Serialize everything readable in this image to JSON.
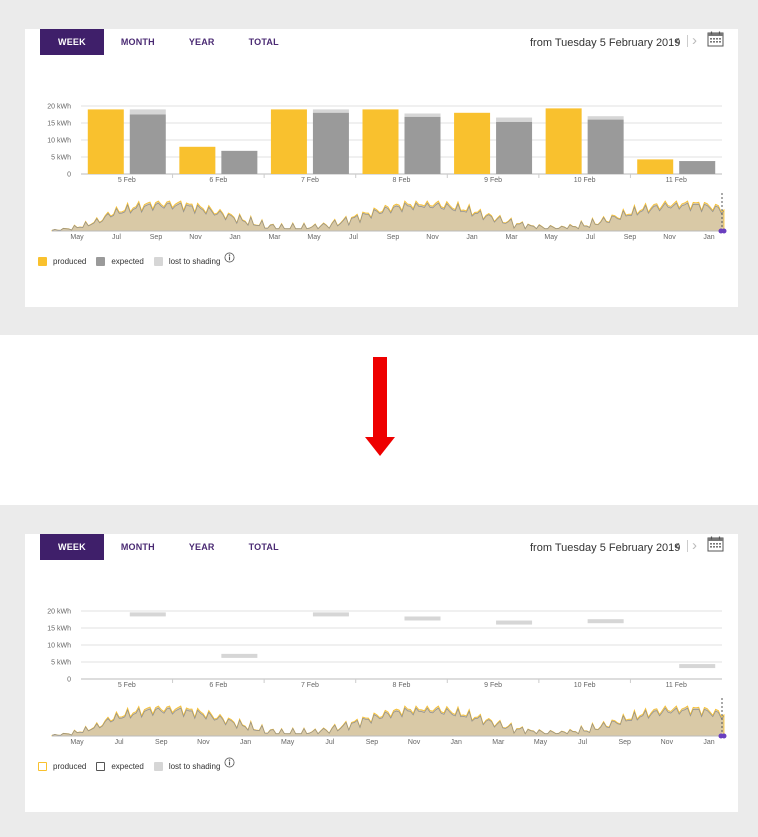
{
  "tabs": [
    "WEEK",
    "MONTH",
    "YEAR",
    "TOTAL"
  ],
  "active_tab": "WEEK",
  "date_range": "from Tuesday 5 February 2019",
  "nav": {
    "prev": "‹",
    "next": "›"
  },
  "legend": {
    "produced": "produced",
    "expected": "expected",
    "lost": "lost to shading"
  },
  "colors": {
    "produced": "#f9c12e",
    "expected": "#9a9a9a",
    "lost": "#d6d6d6",
    "accent": "#3f1f6a",
    "overview_fill": "#d9c9a6",
    "marker": "#6a3fbf"
  },
  "icons": [
    "chevron-left-icon",
    "chevron-right-icon",
    "calendar-icon",
    "info-icon"
  ],
  "arrow_color": "#ee0000",
  "chart_data": [
    {
      "type": "bar",
      "panel": "before",
      "categories": [
        "5 Feb",
        "6 Feb",
        "7 Feb",
        "8 Feb",
        "9 Feb",
        "10 Feb",
        "11 Feb"
      ],
      "y_ticks": [
        "0",
        "5 kWh",
        "10 kWh",
        "15 kWh",
        "20 kWh"
      ],
      "ylim": [
        0,
        20
      ],
      "series": [
        {
          "name": "produced",
          "values": [
            19,
            8,
            19,
            19,
            18,
            19.3,
            4.3
          ]
        },
        {
          "name": "expected",
          "values": [
            17.5,
            6.8,
            18,
            16.8,
            15.3,
            16,
            3.8
          ]
        },
        {
          "name": "lost to shading",
          "values": [
            19,
            6.8,
            19,
            17.8,
            16.6,
            17,
            3.8
          ]
        }
      ],
      "overview_ticks": [
        "May",
        "Jul",
        "Sep",
        "Nov",
        "Jan",
        "Mar",
        "May",
        "Jul",
        "Sep",
        "Nov",
        "Jan",
        "Mar",
        "May",
        "Jul",
        "Sep",
        "Nov",
        "Jan"
      ]
    },
    {
      "type": "bar",
      "panel": "after",
      "categories": [
        "5 Feb",
        "6 Feb",
        "7 Feb",
        "8 Feb",
        "9 Feb",
        "10 Feb",
        "11 Feb"
      ],
      "y_ticks": [
        "0",
        "5 kWh",
        "10 kWh",
        "15 kWh",
        "20 kWh"
      ],
      "ylim": [
        0,
        20
      ],
      "series": [
        {
          "name": "lost to shading",
          "values": [
            19,
            6.8,
            19,
            17.8,
            16.6,
            17,
            3.8
          ]
        }
      ],
      "overview_ticks": [
        "May",
        "Jul",
        "Sep",
        "Nov",
        "Jan",
        "May",
        "Jul",
        "Sep",
        "Nov",
        "Jan",
        "Mar",
        "May",
        "Jul",
        "Sep",
        "Nov",
        "Jan"
      ]
    }
  ]
}
